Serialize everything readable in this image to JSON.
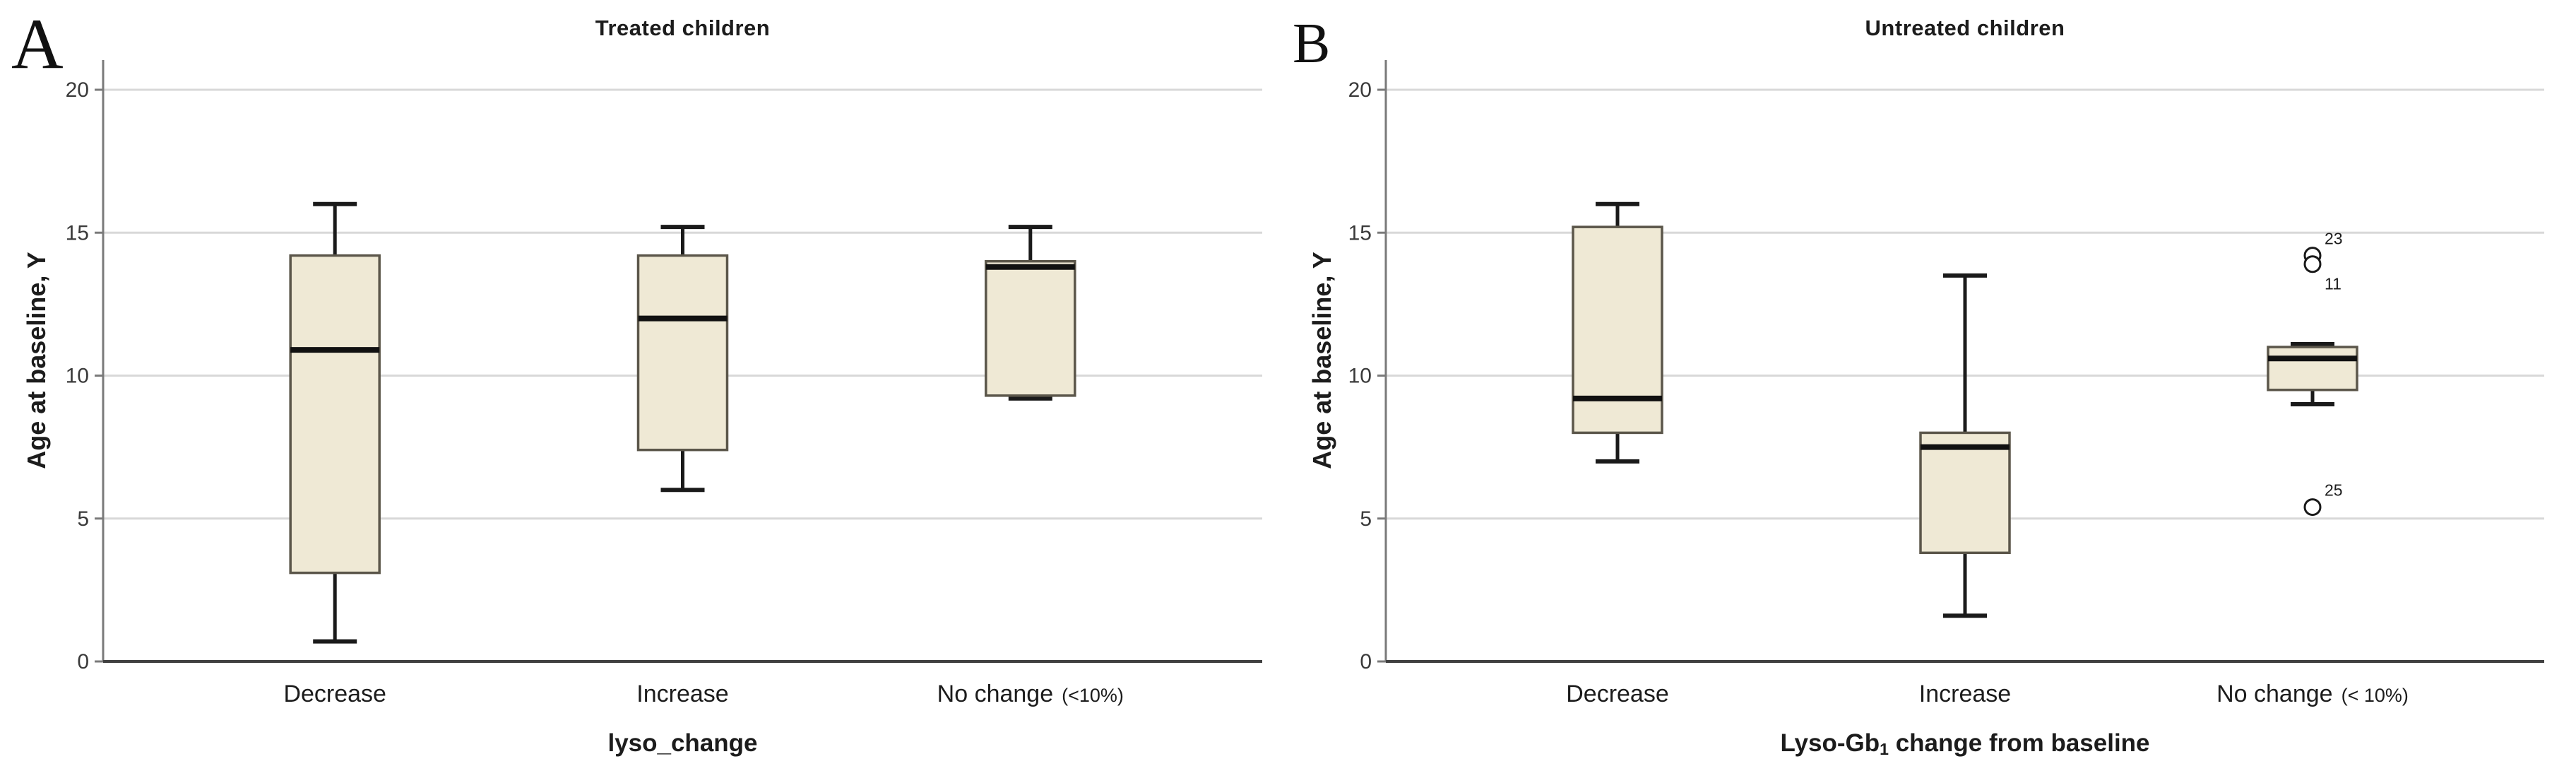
{
  "figure": {
    "background": "#ffffff",
    "panel_letters": {
      "a": "A",
      "b": "B"
    }
  },
  "colors": {
    "box_fill": "#efe9d5",
    "box_border": "#5b564a",
    "whisker_line": "#1a1a1a",
    "median_line": "#111111",
    "gridline": "#d8d8d8",
    "y_axis_line": "#7a7a7a",
    "x_axis_line": "#404040",
    "text": "#1c1c1c",
    "tick_text": "#3a3a3a",
    "outlier_stroke": "#1a1a1a",
    "outlier_fill": "#ffffff"
  },
  "chart_data": [
    {
      "id": "a",
      "type": "box",
      "panel_letter": "A",
      "title": "Treated children",
      "ylabel": "Age at baseline, Y",
      "xlabel_parts": [
        {
          "t": "lyso_change",
          "sub": false
        }
      ],
      "ylim": [
        0,
        21
      ],
      "yticks": [
        0,
        5,
        10,
        15,
        20
      ],
      "grid": true,
      "categories": [
        {
          "label": "Decrease",
          "suffix": ""
        },
        {
          "label": "Increase",
          "suffix": ""
        },
        {
          "label": "No change",
          "suffix": "(<10%)"
        }
      ],
      "boxes": [
        {
          "min": 0.7,
          "q1": 3.1,
          "median": 10.9,
          "q3": 14.2,
          "max": 16.0,
          "outliers": []
        },
        {
          "min": 6.0,
          "q1": 7.4,
          "median": 12.0,
          "q3": 14.2,
          "max": 15.2,
          "outliers": []
        },
        {
          "min": 9.2,
          "q1": 9.3,
          "median": 13.8,
          "q3": 14.0,
          "max": 15.2,
          "outliers": []
        }
      ]
    },
    {
      "id": "b",
      "type": "box",
      "panel_letter": "B",
      "title": "Untreated children",
      "ylabel": "Age at baseline, Y",
      "xlabel_parts": [
        {
          "t": "Lyso-Gb",
          "sub": false
        },
        {
          "t": "1",
          "sub": true
        },
        {
          "t": " change from baseline",
          "sub": false
        }
      ],
      "ylim": [
        0,
        21
      ],
      "yticks": [
        0,
        5,
        10,
        15,
        20
      ],
      "grid": true,
      "categories": [
        {
          "label": "Decrease",
          "suffix": ""
        },
        {
          "label": "Increase",
          "suffix": ""
        },
        {
          "label": "No change",
          "suffix": "(< 10%)"
        }
      ],
      "boxes": [
        {
          "min": 7.0,
          "q1": 8.0,
          "median": 9.2,
          "q3": 15.2,
          "max": 16.0,
          "outliers": []
        },
        {
          "min": 1.6,
          "q1": 3.8,
          "median": 7.5,
          "q3": 8.0,
          "max": 13.5,
          "outliers": []
        },
        {
          "min": 9.0,
          "q1": 9.5,
          "median": 10.6,
          "q3": 11.0,
          "max": 11.1,
          "outliers": [
            {
              "value": 14.2,
              "label": "23",
              "label_pos": "above"
            },
            {
              "value": 13.9,
              "label": "11",
              "label_pos": "below"
            },
            {
              "value": 5.4,
              "label": "25",
              "label_pos": "above"
            }
          ]
        }
      ]
    }
  ]
}
